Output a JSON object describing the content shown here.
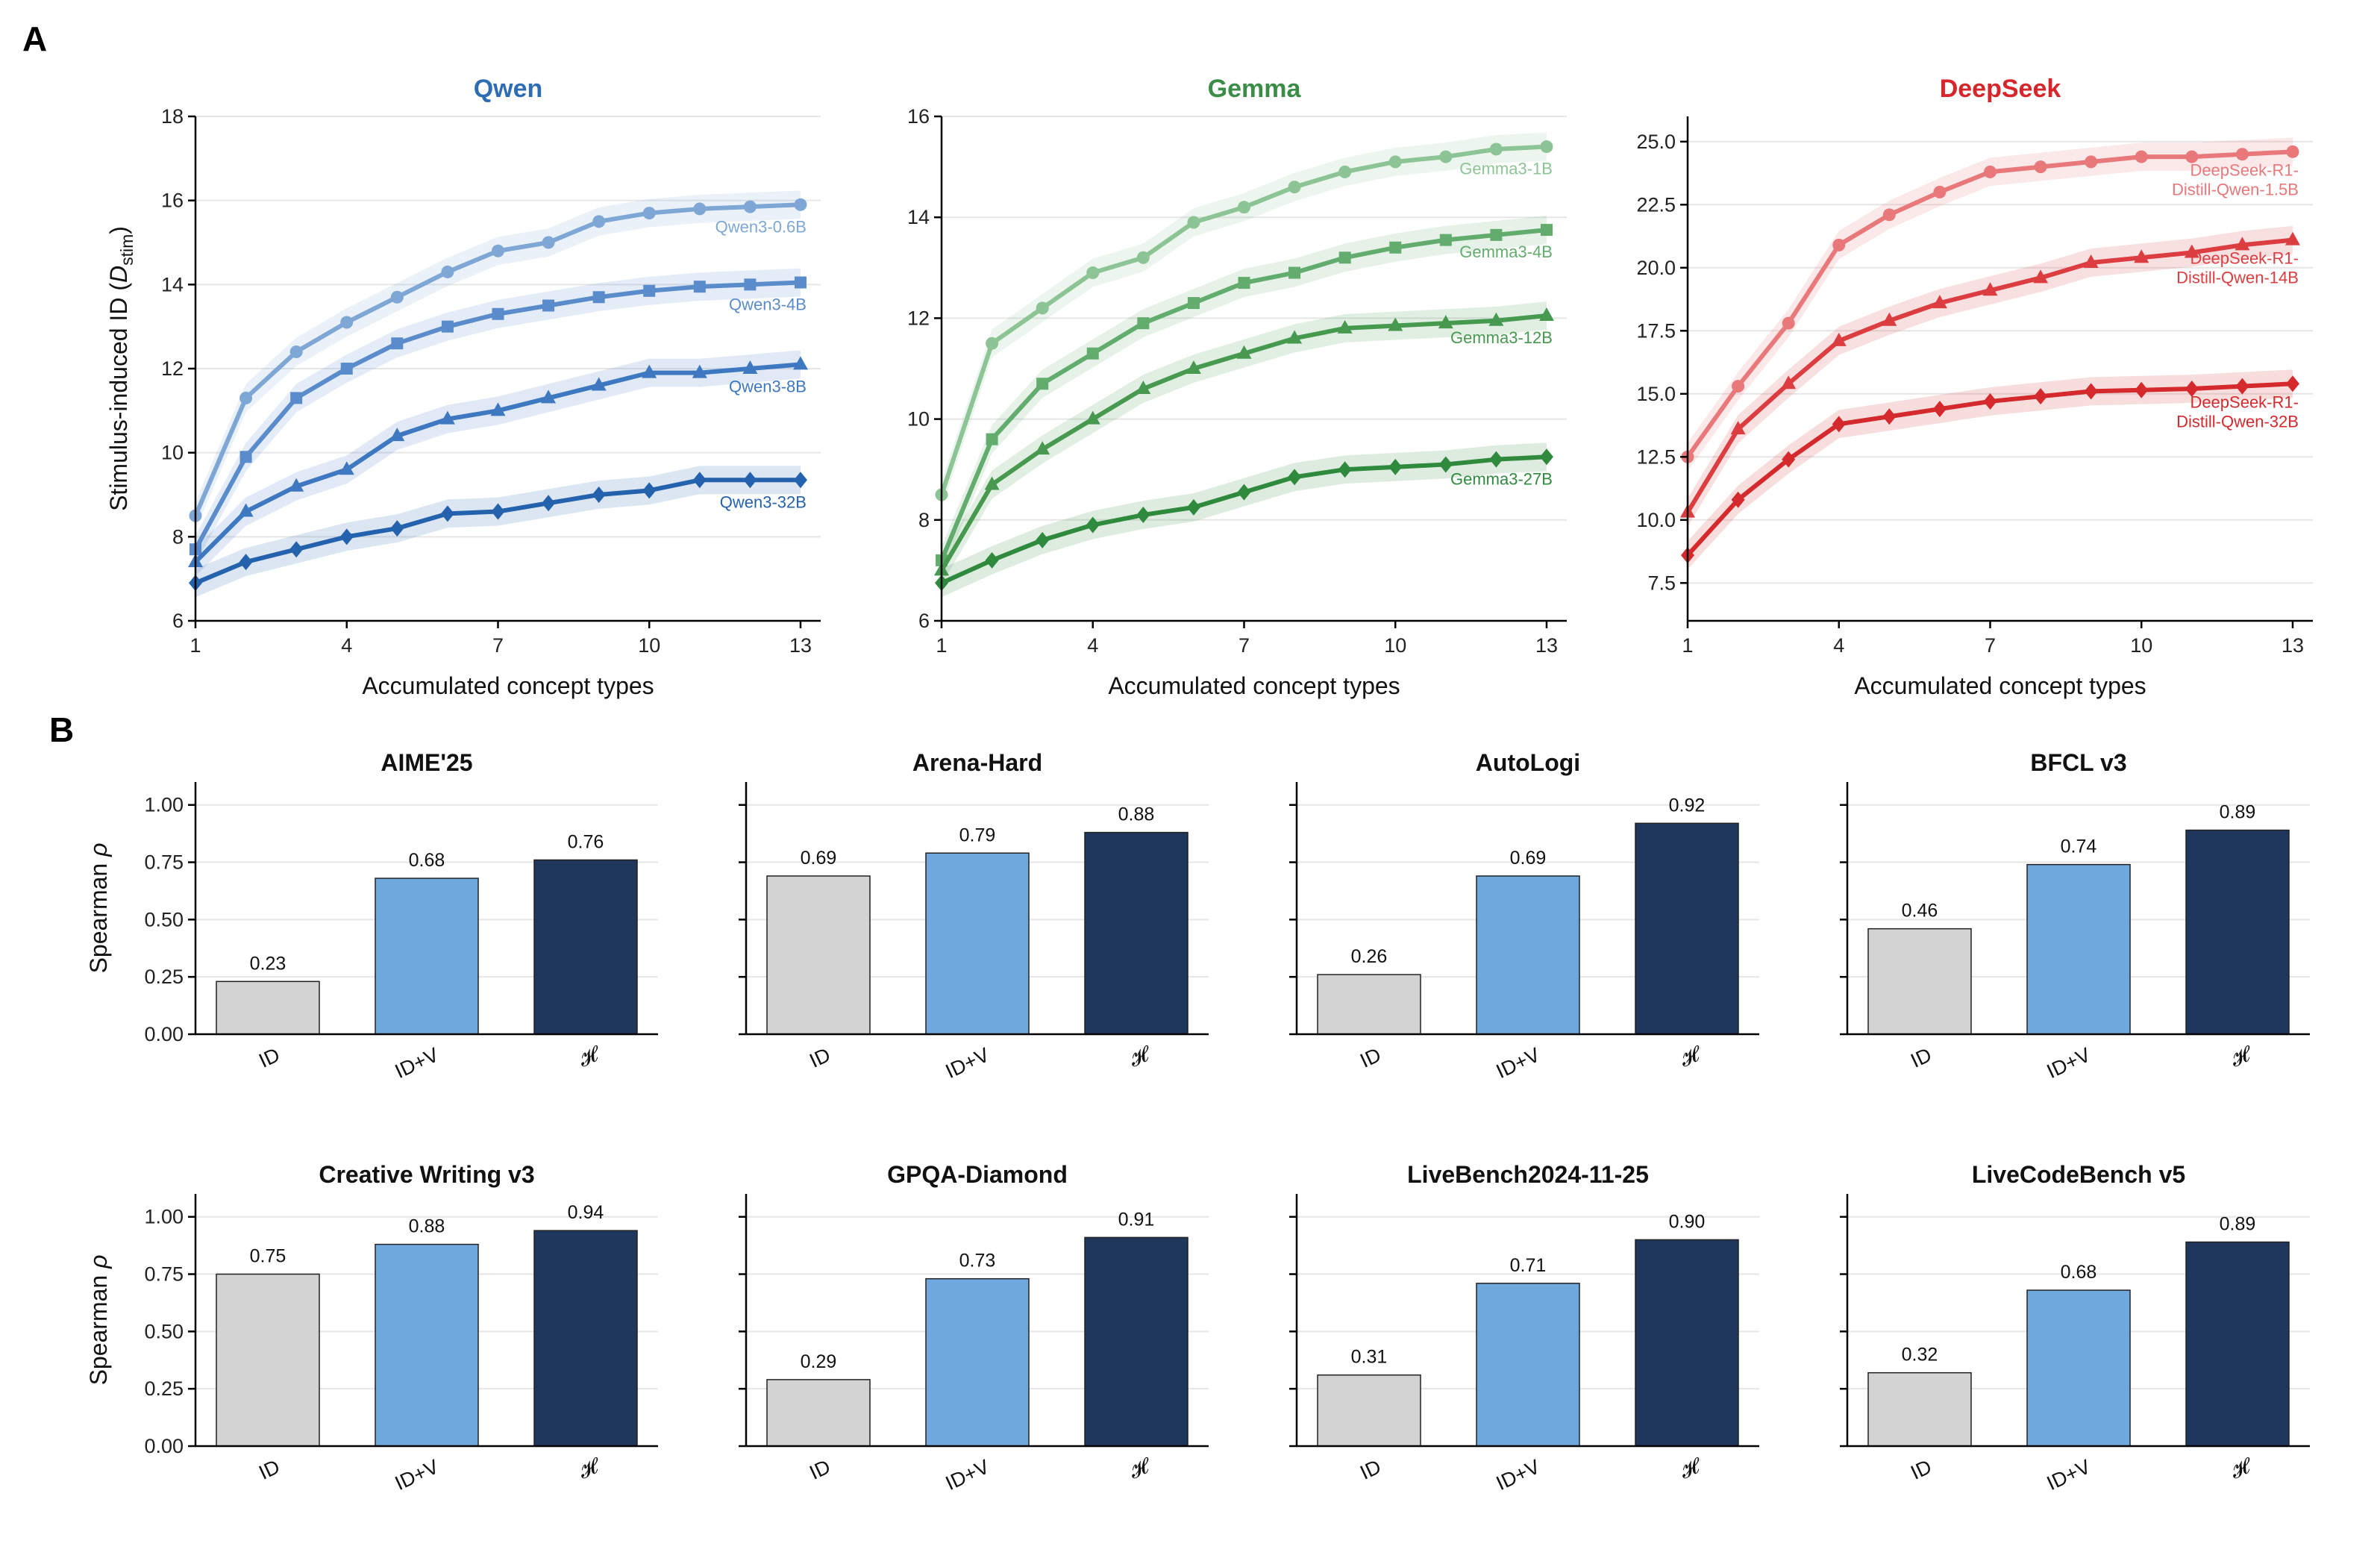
{
  "panel_labels": {
    "a": "A",
    "b": "B"
  },
  "chart_data": [
    {
      "type": "line",
      "panel": "A",
      "title": "Qwen",
      "title_color": "#2e6db4",
      "xlabel": "Accumulated concept types",
      "ylabel": "Stimulus-induced ID (",
      "ylabel_math": "D",
      "ylabel_sub": "stim",
      "ylabel_close": ")",
      "xlim": [
        1,
        13.4
      ],
      "ylim": [
        6,
        18
      ],
      "xticks": [
        1,
        4,
        7,
        10,
        13
      ],
      "yticks": [
        6,
        8,
        10,
        12,
        14,
        16,
        18
      ],
      "ytick_labels": [
        "6",
        "8",
        "10",
        "12",
        "14",
        "16",
        "18"
      ],
      "grid": true,
      "x": [
        1,
        2,
        3,
        4,
        5,
        6,
        7,
        8,
        9,
        10,
        11,
        12,
        13
      ],
      "series": [
        {
          "name": "Qwen3-0.6B",
          "color": "#7ea7d6",
          "marker": "circle",
          "values": [
            8.5,
            11.3,
            12.4,
            13.1,
            13.7,
            14.3,
            14.8,
            15.0,
            15.5,
            15.7,
            15.8,
            15.85,
            15.9
          ]
        },
        {
          "name": "Qwen3-4B",
          "color": "#5a8ccc",
          "marker": "square",
          "values": [
            7.7,
            9.9,
            11.3,
            12.0,
            12.6,
            13.0,
            13.3,
            13.5,
            13.7,
            13.85,
            13.95,
            14.0,
            14.05
          ]
        },
        {
          "name": "Qwen3-8B",
          "color": "#3d78c0",
          "marker": "triangle",
          "values": [
            7.4,
            8.6,
            9.2,
            9.6,
            10.4,
            10.8,
            11.0,
            11.3,
            11.6,
            11.9,
            11.9,
            12.0,
            12.1
          ]
        },
        {
          "name": "Qwen3-32B",
          "color": "#2462ad",
          "marker": "diamond",
          "values": [
            6.9,
            7.4,
            7.7,
            8.0,
            8.2,
            8.55,
            8.6,
            8.8,
            9.0,
            9.1,
            9.35,
            9.35,
            9.35
          ]
        }
      ]
    },
    {
      "type": "line",
      "panel": "A",
      "title": "Gemma",
      "title_color": "#3a8c46",
      "xlabel": "Accumulated concept types",
      "xlim": [
        1,
        13.4
      ],
      "ylim": [
        6,
        16
      ],
      "xticks": [
        1,
        4,
        7,
        10,
        13
      ],
      "yticks": [
        6,
        8,
        10,
        12,
        14,
        16
      ],
      "ytick_labels": [
        "6",
        "8",
        "10",
        "12",
        "14",
        "16"
      ],
      "grid": true,
      "x": [
        1,
        2,
        3,
        4,
        5,
        6,
        7,
        8,
        9,
        10,
        11,
        12,
        13
      ],
      "series": [
        {
          "name": "Gemma3-1B",
          "color": "#8cc496",
          "marker": "circle",
          "values": [
            8.5,
            11.5,
            12.2,
            12.9,
            13.2,
            13.9,
            14.2,
            14.6,
            14.9,
            15.1,
            15.2,
            15.35,
            15.4
          ]
        },
        {
          "name": "Gemma3-4B",
          "color": "#62ac6e",
          "marker": "square",
          "values": [
            7.2,
            9.6,
            10.7,
            11.3,
            11.9,
            12.3,
            12.7,
            12.9,
            13.2,
            13.4,
            13.55,
            13.65,
            13.75
          ]
        },
        {
          "name": "Gemma3-12B",
          "color": "#46994f",
          "marker": "triangle",
          "values": [
            7.0,
            8.7,
            9.4,
            10.0,
            10.6,
            11.0,
            11.3,
            11.6,
            11.8,
            11.85,
            11.9,
            11.95,
            12.05
          ]
        },
        {
          "name": "Gemma3-27B",
          "color": "#2f8a3e",
          "marker": "diamond",
          "values": [
            6.75,
            7.2,
            7.6,
            7.9,
            8.1,
            8.25,
            8.55,
            8.85,
            9.0,
            9.05,
            9.1,
            9.2,
            9.25
          ]
        }
      ]
    },
    {
      "type": "line",
      "panel": "A",
      "title": "DeepSeek",
      "title_color": "#d7262b",
      "xlabel": "Accumulated concept types",
      "xlim": [
        1,
        13.4
      ],
      "ylim": [
        6,
        26
      ],
      "xticks": [
        1,
        4,
        7,
        10,
        13
      ],
      "yticks": [
        7.5,
        10,
        12.5,
        15,
        17.5,
        20,
        22.5,
        25
      ],
      "ytick_labels": [
        "7.5",
        "10.0",
        "12.5",
        "15.0",
        "17.5",
        "20.0",
        "22.5",
        "25.0"
      ],
      "grid": true,
      "x": [
        1,
        2,
        3,
        4,
        5,
        6,
        7,
        8,
        9,
        10,
        11,
        12,
        13
      ],
      "series": [
        {
          "name": "DeepSeek-R1-Distill-Qwen-1.5B",
          "label_lines": [
            "DeepSeek-R1-",
            "Distill-Qwen-1.5B"
          ],
          "color": "#e8787a",
          "marker": "circle",
          "values": [
            12.5,
            15.3,
            17.8,
            20.9,
            22.1,
            23.0,
            23.8,
            24.0,
            24.2,
            24.4,
            24.4,
            24.5,
            24.6
          ]
        },
        {
          "name": "DeepSeek-R1-Distill-Qwen-14B",
          "label_lines": [
            "DeepSeek-R1-",
            "Distill-Qwen-14B"
          ],
          "color": "#dc3d41",
          "marker": "triangle",
          "values": [
            10.3,
            13.6,
            15.4,
            17.1,
            17.9,
            18.6,
            19.1,
            19.6,
            20.2,
            20.4,
            20.6,
            20.9,
            21.1
          ]
        },
        {
          "name": "DeepSeek-R1-Distill-Qwen-32B",
          "label_lines": [
            "DeepSeek-R1-",
            "Distill-Qwen-32B"
          ],
          "color": "#d42a2e",
          "marker": "diamond",
          "values": [
            8.6,
            10.8,
            12.4,
            13.8,
            14.1,
            14.4,
            14.7,
            14.9,
            15.1,
            15.15,
            15.2,
            15.3,
            15.4
          ]
        }
      ]
    },
    {
      "type": "bar",
      "panel": "B",
      "title": "AIME'25",
      "categories": [
        "ID",
        "ID+V",
        "𝓗"
      ],
      "values": [
        0.23,
        0.68,
        0.76
      ],
      "value_labels": [
        "0.23",
        "0.68",
        "0.76"
      ],
      "ylabel": "Spearman ",
      "ylabel_math": "ρ",
      "ylim": [
        0,
        1.1
      ],
      "yticks": [
        0,
        0.25,
        0.5,
        0.75,
        1.0
      ],
      "ytick_labels": [
        "0.00",
        "0.25",
        "0.50",
        "0.75",
        "1.00"
      ],
      "colors": [
        "#d3d3d3",
        "#6fa8dc",
        "#1f375d"
      ]
    },
    {
      "type": "bar",
      "panel": "B",
      "title": "Arena-Hard",
      "categories": [
        "ID",
        "ID+V",
        "𝓗"
      ],
      "values": [
        0.69,
        0.79,
        0.88
      ],
      "value_labels": [
        "0.69",
        "0.79",
        "0.88"
      ],
      "ylim": [
        0,
        1.1
      ],
      "yticks": [
        0,
        0.25,
        0.5,
        0.75,
        1.0
      ],
      "colors": [
        "#d3d3d3",
        "#6fa8dc",
        "#1f375d"
      ]
    },
    {
      "type": "bar",
      "panel": "B",
      "title": "AutoLogi",
      "categories": [
        "ID",
        "ID+V",
        "𝓗"
      ],
      "values": [
        0.26,
        0.69,
        0.92
      ],
      "value_labels": [
        "0.26",
        "0.69",
        "0.92"
      ],
      "ylim": [
        0,
        1.1
      ],
      "yticks": [
        0,
        0.25,
        0.5,
        0.75,
        1.0
      ],
      "colors": [
        "#d3d3d3",
        "#6fa8dc",
        "#1f375d"
      ]
    },
    {
      "type": "bar",
      "panel": "B",
      "title": "BFCL v3",
      "categories": [
        "ID",
        "ID+V",
        "𝓗"
      ],
      "values": [
        0.46,
        0.74,
        0.89
      ],
      "value_labels": [
        "0.46",
        "0.74",
        "0.89"
      ],
      "ylim": [
        0,
        1.1
      ],
      "yticks": [
        0,
        0.25,
        0.5,
        0.75,
        1.0
      ],
      "colors": [
        "#d3d3d3",
        "#6fa8dc",
        "#1f375d"
      ]
    },
    {
      "type": "bar",
      "panel": "B",
      "title": "Creative Writing v3",
      "categories": [
        "ID",
        "ID+V",
        "𝓗"
      ],
      "values": [
        0.75,
        0.88,
        0.94
      ],
      "value_labels": [
        "0.75",
        "0.88",
        "0.94"
      ],
      "ylabel": "Spearman ",
      "ylabel_math": "ρ",
      "ylim": [
        0,
        1.1
      ],
      "yticks": [
        0,
        0.25,
        0.5,
        0.75,
        1.0
      ],
      "ytick_labels": [
        "0.00",
        "0.25",
        "0.50",
        "0.75",
        "1.00"
      ],
      "colors": [
        "#d3d3d3",
        "#6fa8dc",
        "#1f375d"
      ]
    },
    {
      "type": "bar",
      "panel": "B",
      "title": "GPQA-Diamond",
      "categories": [
        "ID",
        "ID+V",
        "𝓗"
      ],
      "values": [
        0.29,
        0.73,
        0.91
      ],
      "value_labels": [
        "0.29",
        "0.73",
        "0.91"
      ],
      "ylim": [
        0,
        1.1
      ],
      "yticks": [
        0,
        0.25,
        0.5,
        0.75,
        1.0
      ],
      "colors": [
        "#d3d3d3",
        "#6fa8dc",
        "#1f375d"
      ]
    },
    {
      "type": "bar",
      "panel": "B",
      "title": "LiveBench2024-11-25",
      "categories": [
        "ID",
        "ID+V",
        "𝓗"
      ],
      "values": [
        0.31,
        0.71,
        0.9
      ],
      "value_labels": [
        "0.31",
        "0.71",
        "0.90"
      ],
      "ylim": [
        0,
        1.1
      ],
      "yticks": [
        0,
        0.25,
        0.5,
        0.75,
        1.0
      ],
      "colors": [
        "#d3d3d3",
        "#6fa8dc",
        "#1f375d"
      ]
    },
    {
      "type": "bar",
      "panel": "B",
      "title": "LiveCodeBench v5",
      "categories": [
        "ID",
        "ID+V",
        "𝓗"
      ],
      "values": [
        0.32,
        0.68,
        0.89
      ],
      "value_labels": [
        "0.32",
        "0.68",
        "0.89"
      ],
      "ylim": [
        0,
        1.1
      ],
      "yticks": [
        0,
        0.25,
        0.5,
        0.75,
        1.0
      ],
      "colors": [
        "#d3d3d3",
        "#6fa8dc",
        "#1f375d"
      ]
    }
  ]
}
